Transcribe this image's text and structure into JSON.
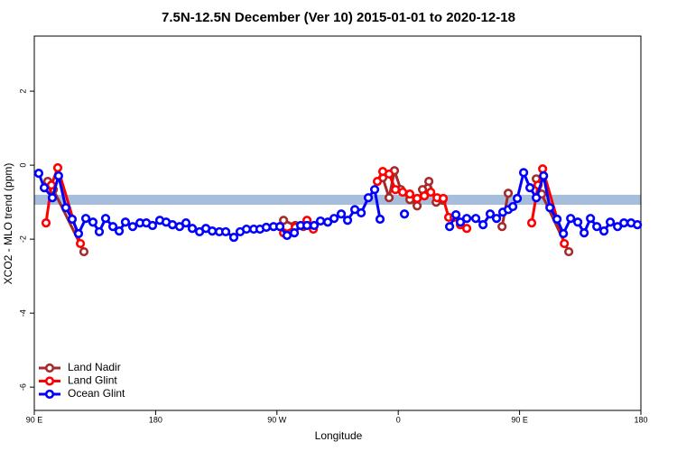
{
  "chart_data": {
    "type": "line",
    "title": "7.5N-12.5N December (Ver 10)   2015-01-01 to 2020-12-18",
    "x_label": "Longitude",
    "y_label": "XCO2 - MLO trend (ppm)",
    "xlim": [
      90,
      540
    ],
    "ylim": [
      -6.63,
      3.49
    ],
    "xticks": [
      {
        "value": 90,
        "label": "90 E"
      },
      {
        "value": 180,
        "label": "180"
      },
      {
        "value": 270,
        "label": "90 W"
      },
      {
        "value": 360,
        "label": "0"
      },
      {
        "value": 450,
        "label": "90 E"
      },
      {
        "value": 540,
        "label": "180"
      }
    ],
    "yticks": [
      2,
      0,
      -2,
      -4,
      -6
    ],
    "band": [
      -1.07,
      -0.8
    ],
    "band_color": "#a6bddb",
    "legend": "bottom-left",
    "series": [
      {
        "name": "Land Nadir",
        "color": "#a52a2a",
        "x": [
          100,
          104.1,
          126.8,
          null,
          274.9,
          283.6,
          289.6,
          null,
          348.5,
          353.2,
          357.2,
          361.9,
          368.6,
          374,
          378,
          382.7,
          388.1,
          392.8,
          null,
          437,
          441.6,
          null,
          462.4,
          466.4,
          486.5
        ],
        "values": [
          -0.44,
          -0.66,
          -2.34,
          null,
          -1.49,
          -1.63,
          -1.66,
          null,
          -0.34,
          -0.88,
          -0.15,
          -0.66,
          -0.93,
          -1.1,
          -0.66,
          -0.44,
          -1.0,
          -0.95,
          null,
          -1.66,
          -0.76,
          null,
          -0.37,
          -0.78,
          -2.34
        ]
      },
      {
        "name": "Land Glint",
        "color": "#ff0000",
        "x": [
          98.7,
          102.7,
          107.4,
          124.2,
          null,
          274.9,
          283.6,
          292.3,
          297,
          null,
          344.5,
          348.5,
          353.2,
          357.9,
          363.3,
          368.6,
          374,
          379.4,
          384.1,
          388.8,
          393.4,
          397.4,
          401.5,
          406.1,
          410.8,
          null,
          459,
          463.7,
          467.1,
          483.2
        ],
        "values": [
          -1.56,
          -0.54,
          -0.07,
          -2.12,
          null,
          -1.83,
          -1.68,
          -1.49,
          -1.73,
          null,
          -0.44,
          -0.17,
          -0.24,
          -0.66,
          -0.73,
          -0.78,
          -0.9,
          -0.83,
          -0.73,
          -0.88,
          -0.9,
          -1.41,
          -1.41,
          -1.61,
          -1.71,
          null,
          -1.56,
          -0.54,
          -0.1,
          -2.12
        ]
      },
      {
        "name": "Ocean Glint",
        "color": "#0000ff",
        "x": [
          93.3,
          97.4,
          103.4,
          108,
          113.4,
          118.1,
          122.8,
          128.2,
          133.5,
          138.2,
          142.9,
          148.3,
          153,
          157.6,
          163,
          168.4,
          173.1,
          177.7,
          183.1,
          187.8,
          192.5,
          197.8,
          202.5,
          207.2,
          212.6,
          217.3,
          222,
          227.3,
          232,
          238,
          242.7,
          247.4,
          252.8,
          257.4,
          262.1,
          267.5,
          272.2,
          277.5,
          282.9,
          287.6,
          292.3,
          297.6,
          302.3,
          307.7,
          312.4,
          317.7,
          322.4,
          327.8,
          332.5,
          337.8,
          342.5,
          346.5,
          null,
          364.6,
          null,
          398.1,
          402.8,
          406.1,
          410.8,
          417.5,
          422.9,
          428.2,
          432.9,
          437.6,
          441.6,
          445,
          448.3,
          453,
          457.7,
          462.4,
          467.8,
          472.5,
          477.8,
          482.5,
          487.9,
          493.2,
          497.9,
          502.6,
          507.3,
          512.6,
          517.3,
          522.7,
          527.4,
          532.7,
          537.4
        ],
        "values": [
          -0.22,
          -0.61,
          -0.88,
          -0.29,
          -1.15,
          -1.46,
          -1.85,
          -1.44,
          -1.54,
          -1.8,
          -1.44,
          -1.66,
          -1.78,
          -1.54,
          -1.66,
          -1.56,
          -1.56,
          -1.63,
          -1.49,
          -1.54,
          -1.61,
          -1.66,
          -1.56,
          -1.71,
          -1.8,
          -1.71,
          -1.78,
          -1.8,
          -1.8,
          -1.95,
          -1.8,
          -1.73,
          -1.73,
          -1.73,
          -1.68,
          -1.66,
          -1.66,
          -1.9,
          -1.83,
          -1.63,
          -1.63,
          -1.63,
          -1.51,
          -1.54,
          -1.44,
          -1.32,
          -1.49,
          -1.2,
          -1.29,
          -0.88,
          -0.66,
          -1.46,
          null,
          -1.32,
          null,
          -1.66,
          -1.34,
          -1.54,
          -1.44,
          -1.44,
          -1.61,
          -1.32,
          -1.44,
          -1.27,
          -1.2,
          -1.12,
          -0.9,
          -0.2,
          -0.61,
          -0.88,
          -0.29,
          -1.15,
          -1.46,
          -1.85,
          -1.44,
          -1.54,
          -1.83,
          -1.44,
          -1.66,
          -1.78,
          -1.54,
          -1.66,
          -1.56,
          -1.56,
          -1.61
        ]
      }
    ]
  }
}
